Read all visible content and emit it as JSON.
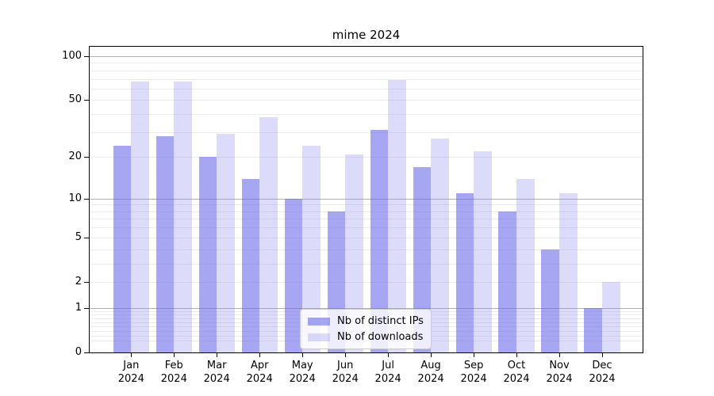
{
  "chart_data": {
    "type": "bar",
    "title": "mime 2024",
    "categories": [
      "Jan",
      "Feb",
      "Mar",
      "Apr",
      "May",
      "Jun",
      "Jul",
      "Aug",
      "Sep",
      "Oct",
      "Nov",
      "Dec"
    ],
    "category_year": "2024",
    "series": [
      {
        "name": "Nb of distinct IPs",
        "values": [
          24,
          28,
          20,
          14,
          10,
          8,
          31,
          17,
          11,
          8,
          4,
          1
        ],
        "fill": "rgba(102,102,235,0.58)",
        "hex_on_white": "#a6a6f3"
      },
      {
        "name": "Nb of downloads",
        "values": [
          67,
          67,
          29,
          38,
          24,
          21,
          69,
          27,
          22,
          14,
          11,
          2
        ],
        "fill": "rgba(138,138,240,0.30)",
        "hex_on_white": "#dcdcfa"
      }
    ],
    "xlabel": "",
    "ylabel": "",
    "yscale": "log1p",
    "ylim": [
      0,
      116
    ],
    "yticks": [
      {
        "value": 100,
        "label": "100"
      },
      {
        "value": 50,
        "label": "50"
      },
      {
        "value": 20,
        "label": "20"
      },
      {
        "value": 10,
        "label": "10"
      },
      {
        "value": 5,
        "label": "5"
      },
      {
        "value": 2,
        "label": "2"
      },
      {
        "value": 1,
        "label": "1"
      },
      {
        "value": 0,
        "label": "0"
      }
    ],
    "grid": {
      "on": true,
      "major_values": [
        1,
        10,
        100
      ],
      "minor_values": [
        0.2,
        0.3,
        0.4,
        0.5,
        0.6,
        0.7,
        0.8,
        0.9,
        2,
        3,
        4,
        5,
        6,
        7,
        8,
        9,
        20,
        30,
        40,
        50,
        60,
        70,
        80,
        90
      ],
      "major_color": "#b0b0b0",
      "minor_color": "#ebebeb"
    },
    "legend": {
      "position": "lower center",
      "background": "#ffffff",
      "border_color": "#cccccc"
    },
    "axis_color": "#000000"
  }
}
